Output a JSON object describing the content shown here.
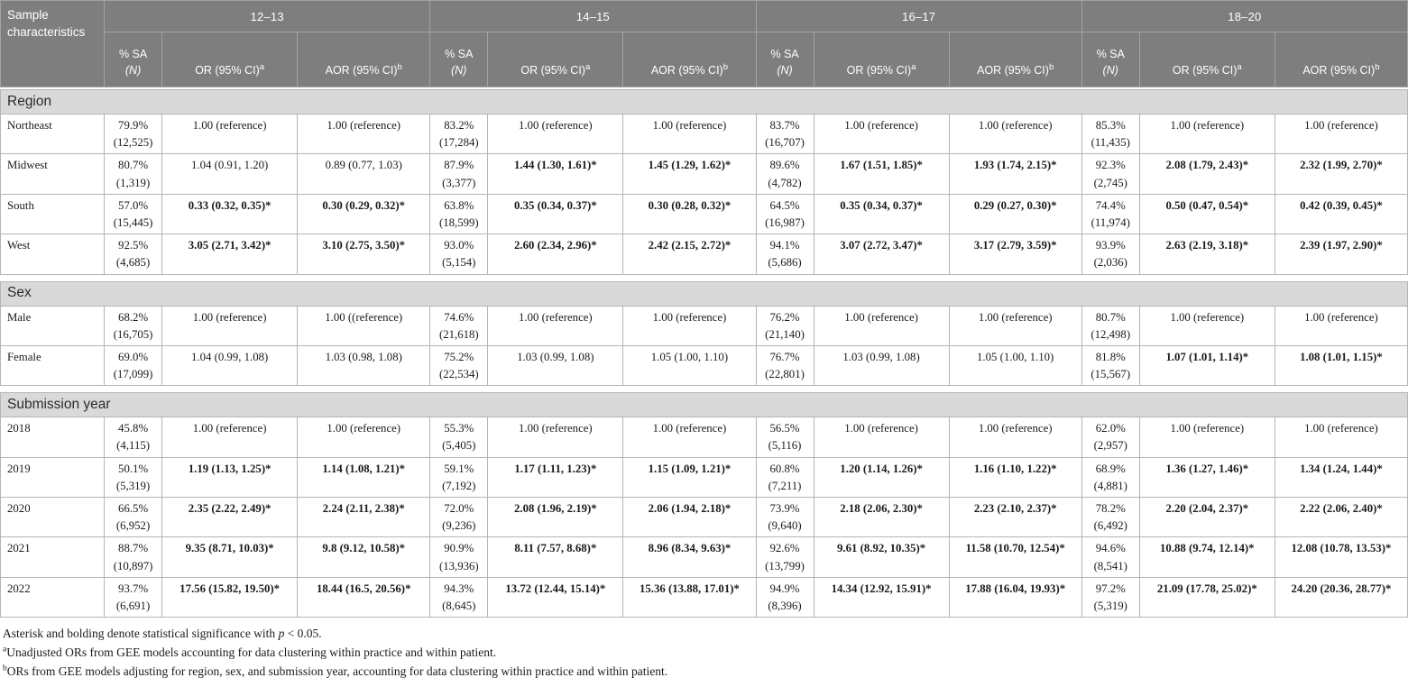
{
  "colors": {
    "header_bg": "#7e7e7e",
    "header_text": "#ffffff",
    "band_bg": "#d9d9d9",
    "band_text": "#2b2b2b",
    "border": "#b5b5b5",
    "body_text": "#1a1a1a"
  },
  "table": {
    "corner_label": "Sample characteristics",
    "age_groups": [
      "12–13",
      "14–15",
      "16–17",
      "18–20"
    ],
    "sub_headers": {
      "pct_top": "% SA",
      "pct_bottom": "(N)",
      "or": "OR (95% CI)",
      "or_sup": "a",
      "aor": "AOR (95% CI)",
      "aor_sup": "b"
    },
    "sections": [
      {
        "label": "Region",
        "rows": [
          {
            "label": "Northeast",
            "groups": [
              {
                "pct": "79.9%",
                "n": "(12,525)",
                "or": "1.00 (reference)",
                "aor": "1.00 (reference)"
              },
              {
                "pct": "83.2%",
                "n": "(17,284)",
                "or": "1.00 (reference)",
                "aor": "1.00 (reference)"
              },
              {
                "pct": "83.7%",
                "n": "(16,707)",
                "or": "1.00 (reference)",
                "aor": "1.00 (reference)"
              },
              {
                "pct": "85.3%",
                "n": "(11,435)",
                "or": "1.00 (reference)",
                "aor": "1.00 (reference)"
              }
            ]
          },
          {
            "label": "Midwest",
            "groups": [
              {
                "pct": "80.7%",
                "n": "(1,319)",
                "or": "1.04 (0.91, 1.20)",
                "aor": "0.89 (0.77, 1.03)"
              },
              {
                "pct": "87.9%",
                "n": "(3,377)",
                "or": "1.44 (1.30, 1.61)*",
                "aor": "1.45 (1.29, 1.62)*"
              },
              {
                "pct": "89.6%",
                "n": "(4,782)",
                "or": "1.67 (1.51, 1.85)*",
                "aor": "1.93 (1.74, 2.15)*"
              },
              {
                "pct": "92.3%",
                "n": "(2,745)",
                "or": "2.08 (1.79, 2.43)*",
                "aor": "2.32 (1.99, 2.70)*"
              }
            ]
          },
          {
            "label": "South",
            "groups": [
              {
                "pct": "57.0%",
                "n": "(15,445)",
                "or": "0.33 (0.32, 0.35)*",
                "aor": "0.30 (0.29, 0.32)*"
              },
              {
                "pct": "63.8%",
                "n": "(18,599)",
                "or": "0.35 (0.34, 0.37)*",
                "aor": "0.30 (0.28, 0.32)*"
              },
              {
                "pct": "64.5%",
                "n": "(16,987)",
                "or": "0.35 (0.34, 0.37)*",
                "aor": "0.29 (0.27, 0.30)*"
              },
              {
                "pct": "74.4%",
                "n": "(11,974)",
                "or": "0.50 (0.47, 0.54)*",
                "aor": "0.42 (0.39, 0.45)*"
              }
            ]
          },
          {
            "label": "West",
            "groups": [
              {
                "pct": "92.5%",
                "n": "(4,685)",
                "or": "3.05 (2.71, 3.42)*",
                "aor": "3.10 (2.75, 3.50)*"
              },
              {
                "pct": "93.0%",
                "n": "(5,154)",
                "or": "2.60 (2.34, 2.96)*",
                "aor": "2.42 (2.15, 2.72)*"
              },
              {
                "pct": "94.1%",
                "n": "(5,686)",
                "or": "3.07 (2.72, 3.47)*",
                "aor": "3.17 (2.79, 3.59)*"
              },
              {
                "pct": "93.9%",
                "n": "(2,036)",
                "or": "2.63 (2.19, 3.18)*",
                "aor": "2.39 (1.97, 2.90)*"
              }
            ]
          }
        ]
      },
      {
        "label": "Sex",
        "rows": [
          {
            "label": "Male",
            "groups": [
              {
                "pct": "68.2%",
                "n": "(16,705)",
                "or": "1.00 (reference)",
                "aor": "1.00 ((reference)"
              },
              {
                "pct": "74.6%",
                "n": "(21,618)",
                "or": "1.00 (reference)",
                "aor": "1.00 (reference)"
              },
              {
                "pct": "76.2%",
                "n": "(21,140)",
                "or": "1.00 (reference)",
                "aor": "1.00 (reference)"
              },
              {
                "pct": "80.7%",
                "n": "(12,498)",
                "or": "1.00 (reference)",
                "aor": "1.00 (reference)"
              }
            ]
          },
          {
            "label": "Female",
            "groups": [
              {
                "pct": "69.0%",
                "n": "(17,099)",
                "or": "1.04 (0.99, 1.08)",
                "aor": "1.03 (0.98, 1.08)"
              },
              {
                "pct": "75.2%",
                "n": "(22,534)",
                "or": "1.03 (0.99, 1.08)",
                "aor": "1.05 (1.00, 1.10)"
              },
              {
                "pct": "76.7%",
                "n": "(22,801)",
                "or": "1.03 (0.99, 1.08)",
                "aor": "1.05 (1.00, 1.10)"
              },
              {
                "pct": "81.8%",
                "n": "(15,567)",
                "or": "1.07 (1.01, 1.14)*",
                "aor": "1.08 (1.01, 1.15)*"
              }
            ]
          }
        ]
      },
      {
        "label": "Submission year",
        "rows": [
          {
            "label": "2018",
            "groups": [
              {
                "pct": "45.8%",
                "n": "(4,115)",
                "or": "1.00 (reference)",
                "aor": "1.00 (reference)"
              },
              {
                "pct": "55.3%",
                "n": "(5,405)",
                "or": "1.00 (reference)",
                "aor": "1.00 (reference)"
              },
              {
                "pct": "56.5%",
                "n": "(5,116)",
                "or": "1.00 (reference)",
                "aor": "1.00 (reference)"
              },
              {
                "pct": "62.0%",
                "n": "(2,957)",
                "or": "1.00 (reference)",
                "aor": "1.00 (reference)"
              }
            ]
          },
          {
            "label": "2019",
            "groups": [
              {
                "pct": "50.1%",
                "n": "(5,319)",
                "or": "1.19 (1.13, 1.25)*",
                "aor": "1.14 (1.08, 1.21)*"
              },
              {
                "pct": "59.1%",
                "n": "(7,192)",
                "or": "1.17 (1.11, 1.23)*",
                "aor": "1.15 (1.09, 1.21)*"
              },
              {
                "pct": "60.8%",
                "n": "(7,211)",
                "or": "1.20 (1.14, 1.26)*",
                "aor": "1.16 (1.10, 1.22)*"
              },
              {
                "pct": "68.9%",
                "n": "(4,881)",
                "or": "1.36 (1.27, 1.46)*",
                "aor": "1.34 (1.24, 1.44)*"
              }
            ]
          },
          {
            "label": "2020",
            "groups": [
              {
                "pct": "66.5%",
                "n": "(6,952)",
                "or": "2.35 (2.22, 2.49)*",
                "aor": "2.24 (2.11, 2.38)*"
              },
              {
                "pct": "72.0%",
                "n": "(9,236)",
                "or": "2.08 (1.96, 2.19)*",
                "aor": "2.06 (1.94, 2.18)*"
              },
              {
                "pct": "73.9%",
                "n": "(9,640)",
                "or": "2.18 (2.06, 2.30)*",
                "aor": "2.23 (2.10, 2.37)*"
              },
              {
                "pct": "78.2%",
                "n": "(6,492)",
                "or": "2.20 (2.04, 2.37)*",
                "aor": "2.22 (2.06, 2.40)*"
              }
            ]
          },
          {
            "label": "2021",
            "groups": [
              {
                "pct": "88.7%",
                "n": "(10,897)",
                "or": "9.35 (8.71, 10.03)*",
                "aor": "9.8 (9.12, 10.58)*"
              },
              {
                "pct": "90.9%",
                "n": "(13,936)",
                "or": "8.11 (7.57, 8.68)*",
                "aor": "8.96 (8.34, 9.63)*"
              },
              {
                "pct": "92.6%",
                "n": "(13,799)",
                "or": "9.61 (8.92, 10.35)*",
                "aor": "11.58 (10.70, 12.54)*"
              },
              {
                "pct": "94.6%",
                "n": "(8,541)",
                "or": "10.88 (9.74, 12.14)*",
                "aor": "12.08 (10.78, 13.53)*"
              }
            ]
          },
          {
            "label": "2022",
            "groups": [
              {
                "pct": "93.7%",
                "n": "(6,691)",
                "or": "17.56 (15.82, 19.50)*",
                "aor": "18.44 (16.5, 20.56)*"
              },
              {
                "pct": "94.3%",
                "n": "(8,645)",
                "or": "13.72 (12.44, 15.14)*",
                "aor": "15.36 (13.88, 17.01)*"
              },
              {
                "pct": "94.9%",
                "n": "(8,396)",
                "or": "14.34 (12.92, 15.91)*",
                "aor": "17.88 (16.04, 19.93)*"
              },
              {
                "pct": "97.2%",
                "n": "(5,319)",
                "or": "21.09 (17.78, 25.02)*",
                "aor": "24.20 (20.36, 28.77)*"
              }
            ]
          }
        ]
      }
    ]
  },
  "footnotes": [
    {
      "sup": "",
      "pre": "Asterisk and bolding denote statistical significance with ",
      "italic": "p",
      "post": " < 0.05."
    },
    {
      "sup": "a",
      "pre": "Unadjusted ORs from GEE models accounting for data clustering within practice and within patient.",
      "italic": "",
      "post": ""
    },
    {
      "sup": "b",
      "pre": "ORs from GEE models adjusting for region, sex, and submission year, accounting for data clustering within practice and within patient.",
      "italic": "",
      "post": ""
    }
  ]
}
